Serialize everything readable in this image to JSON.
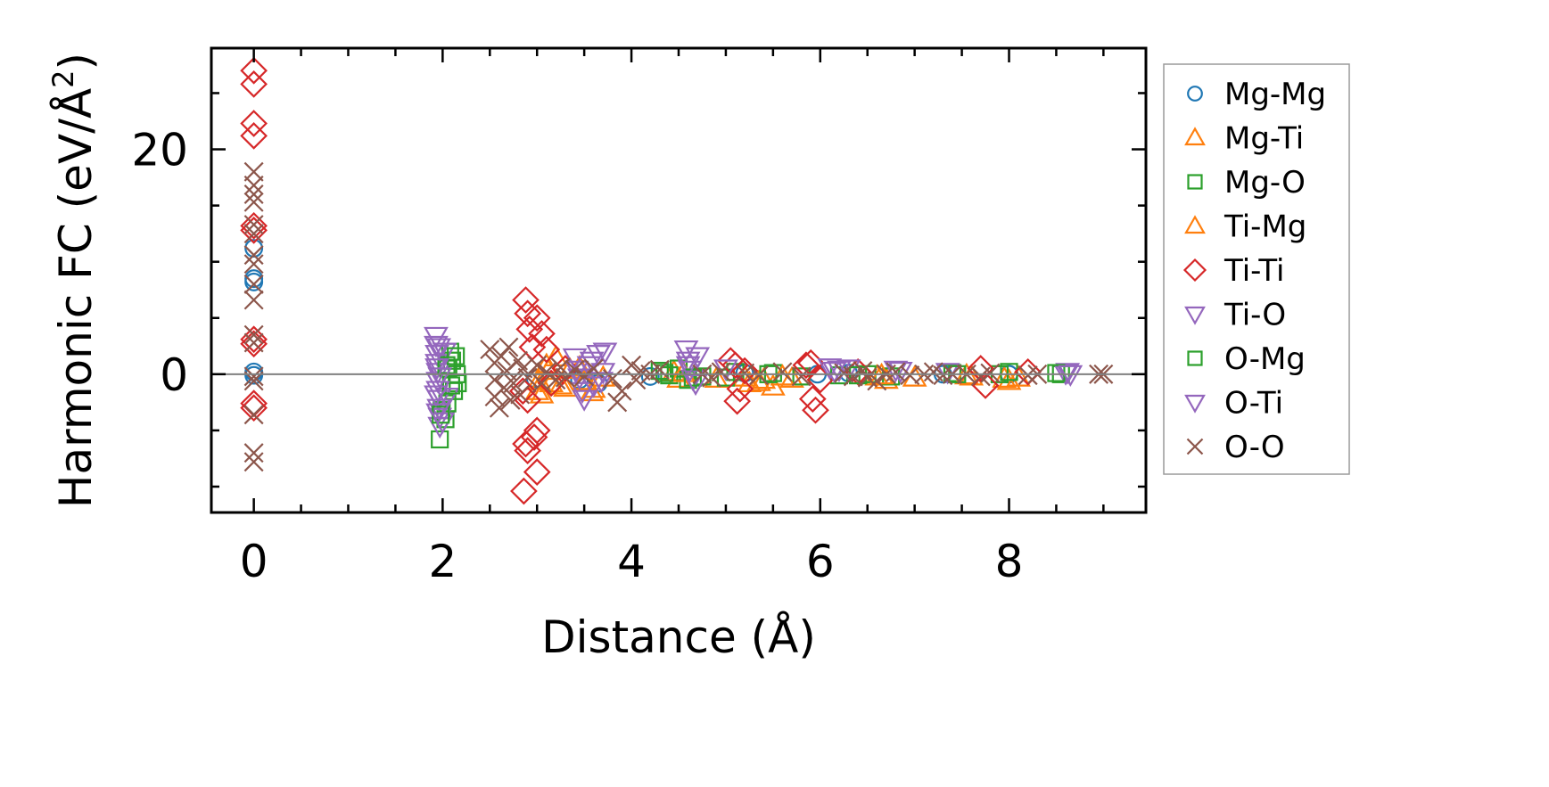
{
  "chart_data": {
    "type": "scatter",
    "xlabel": "Distance (Å)",
    "ylabel_main": "Harmonic FC (eV/Å",
    "ylabel_sup": "2",
    "ylabel_close": ")",
    "xlim": [
      -0.45,
      9.45
    ],
    "ylim": [
      -12.3,
      29.0
    ],
    "x_ticks": [
      0,
      2,
      4,
      6,
      8
    ],
    "x_tick_labels": [
      "0",
      "2",
      "4",
      "6",
      "8"
    ],
    "y_ticks": [
      0,
      20
    ],
    "y_tick_labels": [
      "0",
      "20"
    ],
    "x_minor_step": 0.5,
    "y_minor_step": 5,
    "grid": false,
    "reference_line_y": 0,
    "legend_position": "right-outside",
    "series": [
      {
        "name": "Mg-Mg",
        "marker": "circle",
        "color": "#1f77b4",
        "points": [
          [
            0,
            11.2
          ],
          [
            0,
            8.5
          ],
          [
            0,
            8.2
          ],
          [
            0,
            0.2
          ],
          [
            0,
            -0.1
          ],
          [
            2.98,
            -0.4
          ],
          [
            3.45,
            -0.5
          ],
          [
            3.65,
            -0.8
          ],
          [
            4.2,
            -0.2
          ],
          [
            5.2,
            0.1
          ],
          [
            5.97,
            0.0
          ],
          [
            6.3,
            0.1
          ],
          [
            7.3,
            0.0
          ],
          [
            8.0,
            0.0
          ]
        ]
      },
      {
        "name": "Mg-Ti",
        "marker": "triangle-up",
        "color": "#ff7f0e",
        "points": [
          [
            3.0,
            -1.5
          ],
          [
            3.05,
            -1.8
          ],
          [
            3.1,
            0.8
          ],
          [
            3.15,
            -0.8
          ],
          [
            3.2,
            1.5
          ],
          [
            3.3,
            -1.2
          ],
          [
            3.35,
            0.4
          ],
          [
            3.5,
            -0.6
          ],
          [
            3.58,
            -1.6
          ],
          [
            3.7,
            -0.3
          ],
          [
            4.45,
            0.2
          ],
          [
            4.5,
            -0.4
          ],
          [
            4.9,
            -0.4
          ],
          [
            5.2,
            -0.3
          ],
          [
            5.25,
            -0.8
          ],
          [
            5.4,
            -0.5
          ],
          [
            5.5,
            -1.1
          ],
          [
            5.7,
            -0.4
          ],
          [
            6.6,
            -0.2
          ],
          [
            6.7,
            -0.5
          ],
          [
            7.0,
            -0.3
          ],
          [
            7.6,
            -0.2
          ],
          [
            7.95,
            -0.4
          ],
          [
            8.0,
            -0.6
          ],
          [
            8.1,
            -0.3
          ]
        ]
      },
      {
        "name": "Mg-O",
        "marker": "square",
        "color": "#2ca02c",
        "points": [
          [
            1.97,
            -5.8
          ],
          [
            1.99,
            -3.2
          ],
          [
            2.03,
            -4.0
          ],
          [
            2.05,
            -2.6
          ],
          [
            2.06,
            0.5
          ],
          [
            2.08,
            2.0
          ],
          [
            2.1,
            1.2
          ],
          [
            2.12,
            -1.5
          ],
          [
            2.15,
            0.0
          ],
          [
            2.16,
            -0.8
          ],
          [
            4.3,
            0.3
          ],
          [
            4.4,
            -0.1
          ],
          [
            4.5,
            0.5
          ],
          [
            4.6,
            -0.5
          ],
          [
            4.75,
            -0.2
          ],
          [
            5.0,
            -0.3
          ],
          [
            5.1,
            0.2
          ],
          [
            5.5,
            0.1
          ],
          [
            5.8,
            -0.2
          ],
          [
            6.2,
            -0.1
          ],
          [
            6.5,
            0.0
          ],
          [
            6.75,
            -0.2
          ],
          [
            7.4,
            0.1
          ],
          [
            7.9,
            0.0
          ],
          [
            8.0,
            0.2
          ],
          [
            8.55,
            0.0
          ]
        ]
      },
      {
        "name": "Ti-Mg",
        "marker": "triangle-up",
        "color": "#ff7f0e",
        "points": [
          [
            3.02,
            -0.6
          ],
          [
            3.12,
            0.3
          ],
          [
            3.25,
            -1.0
          ],
          [
            3.45,
            0.6
          ],
          [
            3.6,
            -1.3
          ],
          [
            4.55,
            0.1
          ],
          [
            5.35,
            -0.7
          ],
          [
            5.6,
            -0.2
          ],
          [
            6.65,
            -0.1
          ],
          [
            7.55,
            -0.1
          ]
        ]
      },
      {
        "name": "Ti-Ti",
        "marker": "diamond",
        "color": "#d62728",
        "points": [
          [
            0,
            27.0
          ],
          [
            0,
            25.8
          ],
          [
            0,
            22.3
          ],
          [
            0,
            21.2
          ],
          [
            0,
            13.2
          ],
          [
            0,
            12.8
          ],
          [
            0,
            3.1
          ],
          [
            0,
            2.7
          ],
          [
            0,
            -2.6
          ],
          [
            0,
            -3.0
          ],
          [
            2.88,
            6.6
          ],
          [
            2.9,
            5.4
          ],
          [
            2.92,
            4.0
          ],
          [
            2.95,
            2.4
          ],
          [
            2.85,
            -1.5
          ],
          [
            2.9,
            -2.3
          ],
          [
            2.88,
            -6.2
          ],
          [
            2.9,
            -6.8
          ],
          [
            2.86,
            -10.4
          ],
          [
            3.0,
            5.0
          ],
          [
            3.05,
            3.6
          ],
          [
            3.0,
            -5.0
          ],
          [
            2.97,
            -5.6
          ],
          [
            3.0,
            -8.7
          ],
          [
            3.1,
            2.2
          ],
          [
            3.15,
            -0.8
          ],
          [
            3.3,
            0.5
          ],
          [
            5.05,
            1.2
          ],
          [
            5.1,
            0.8
          ],
          [
            5.12,
            -2.4
          ],
          [
            5.15,
            -1.3
          ],
          [
            5.2,
            0.3
          ],
          [
            5.85,
            0.8
          ],
          [
            5.9,
            1.0
          ],
          [
            5.92,
            -2.2
          ],
          [
            5.95,
            -3.2
          ],
          [
            6.0,
            -0.5
          ],
          [
            6.4,
            0.2
          ],
          [
            7.7,
            0.5
          ],
          [
            7.75,
            -1.0
          ],
          [
            8.2,
            0.2
          ]
        ]
      },
      {
        "name": "Ti-O",
        "marker": "triangle-down",
        "color": "#9467bd",
        "points": [
          [
            1.93,
            3.4
          ],
          [
            1.93,
            2.6
          ],
          [
            1.94,
            1.8
          ],
          [
            1.94,
            1.0
          ],
          [
            1.95,
            0.2
          ],
          [
            1.95,
            -0.6
          ],
          [
            1.95,
            -1.4
          ],
          [
            1.96,
            -2.2
          ],
          [
            1.96,
            -3.0
          ],
          [
            1.97,
            -3.8
          ],
          [
            1.97,
            -4.6
          ],
          [
            2.0,
            -4.2
          ],
          [
            2.02,
            2.0
          ],
          [
            2.05,
            -2.0
          ],
          [
            3.4,
            1.5
          ],
          [
            3.45,
            -0.3
          ],
          [
            3.5,
            -2.2
          ],
          [
            3.55,
            0.8
          ],
          [
            3.6,
            -1.0
          ],
          [
            3.65,
            1.8
          ],
          [
            3.7,
            0.2
          ],
          [
            3.72,
            2.0
          ],
          [
            4.58,
            2.2
          ],
          [
            4.6,
            1.2
          ],
          [
            4.62,
            0.4
          ],
          [
            4.65,
            -0.4
          ],
          [
            4.7,
            1.6
          ],
          [
            5.0,
            0.5
          ],
          [
            6.1,
            0.6
          ],
          [
            6.2,
            0.4
          ],
          [
            6.3,
            0.5
          ],
          [
            6.8,
            0.4
          ],
          [
            7.35,
            0.2
          ],
          [
            8.6,
            0.1
          ],
          [
            8.62,
            0.2
          ]
        ]
      },
      {
        "name": "O-Mg",
        "marker": "square",
        "color": "#2ca02c",
        "points": [
          [
            1.98,
            -3.6
          ],
          [
            2.04,
            0.8
          ],
          [
            2.09,
            -1.0
          ],
          [
            2.14,
            1.6
          ],
          [
            4.35,
            0.1
          ],
          [
            4.65,
            -0.3
          ],
          [
            5.45,
            0.0
          ],
          [
            6.4,
            -0.1
          ],
          [
            7.45,
            0.0
          ],
          [
            8.5,
            0.1
          ]
        ]
      },
      {
        "name": "O-Ti",
        "marker": "triangle-down",
        "color": "#9467bd",
        "points": [
          [
            1.93,
            -1.8
          ],
          [
            1.94,
            0.6
          ],
          [
            1.95,
            -3.4
          ],
          [
            1.96,
            2.4
          ],
          [
            1.97,
            -0.2
          ],
          [
            3.42,
            0.4
          ],
          [
            3.48,
            -1.5
          ],
          [
            3.58,
            1.2
          ],
          [
            3.68,
            -0.6
          ],
          [
            4.6,
            0.8
          ],
          [
            4.68,
            -0.8
          ],
          [
            6.15,
            0.3
          ],
          [
            6.85,
            0.3
          ],
          [
            8.65,
            0.0
          ]
        ]
      },
      {
        "name": "O-O",
        "marker": "x",
        "color": "#8c564b",
        "points": [
          [
            0,
            18.0
          ],
          [
            0,
            16.8
          ],
          [
            0,
            16.0
          ],
          [
            0,
            15.3
          ],
          [
            0,
            13.3
          ],
          [
            0,
            12.5
          ],
          [
            0,
            10.6
          ],
          [
            0,
            9.8
          ],
          [
            0,
            8.0
          ],
          [
            0,
            6.6
          ],
          [
            0,
            3.5
          ],
          [
            0,
            2.8
          ],
          [
            0,
            -0.2
          ],
          [
            0,
            -0.6
          ],
          [
            0,
            -3.6
          ],
          [
            0,
            -7.0
          ],
          [
            0,
            -7.8
          ],
          [
            2.5,
            2.2
          ],
          [
            2.55,
            1.0
          ],
          [
            2.55,
            -0.5
          ],
          [
            2.55,
            -2.0
          ],
          [
            2.6,
            -3.0
          ],
          [
            2.62,
            1.6
          ],
          [
            2.65,
            -1.2
          ],
          [
            2.68,
            0.3
          ],
          [
            2.7,
            2.4
          ],
          [
            2.72,
            -2.3
          ],
          [
            2.75,
            -0.8
          ],
          [
            2.8,
            1.2
          ],
          [
            2.82,
            -1.8
          ],
          [
            2.85,
            0.5
          ],
          [
            2.9,
            -0.3
          ],
          [
            3.0,
            0.8
          ],
          [
            3.05,
            -0.8
          ],
          [
            3.1,
            0.2
          ],
          [
            3.2,
            -0.5
          ],
          [
            3.25,
            0.6
          ],
          [
            3.3,
            -0.3
          ],
          [
            3.4,
            0.4
          ],
          [
            3.5,
            -0.2
          ],
          [
            3.6,
            0.5
          ],
          [
            3.8,
            -0.4
          ],
          [
            3.85,
            -2.5
          ],
          [
            3.9,
            -1.5
          ],
          [
            4.0,
            0.8
          ],
          [
            4.05,
            -0.5
          ],
          [
            4.1,
            0.3
          ],
          [
            4.2,
            0.0
          ],
          [
            4.3,
            0.4
          ],
          [
            4.75,
            0.0
          ],
          [
            4.85,
            -0.3
          ],
          [
            4.95,
            0.2
          ],
          [
            5.2,
            0.1
          ],
          [
            5.35,
            -0.1
          ],
          [
            5.6,
            0.2
          ],
          [
            5.8,
            -0.2
          ],
          [
            6.25,
            0.1
          ],
          [
            6.35,
            -0.2
          ],
          [
            6.45,
            0.3
          ],
          [
            6.5,
            -0.3
          ],
          [
            6.6,
            -0.6
          ],
          [
            6.7,
            0.0
          ],
          [
            6.8,
            0.2
          ],
          [
            6.95,
            -0.1
          ],
          [
            7.1,
            0.0
          ],
          [
            7.2,
            0.2
          ],
          [
            7.3,
            -0.1
          ],
          [
            7.4,
            0.0
          ],
          [
            7.55,
            0.0
          ],
          [
            7.7,
            -0.2
          ],
          [
            7.8,
            0.1
          ],
          [
            8.2,
            -0.1
          ],
          [
            8.3,
            0.0
          ],
          [
            8.95,
            0.0
          ],
          [
            9.0,
            0.0
          ]
        ]
      }
    ]
  }
}
